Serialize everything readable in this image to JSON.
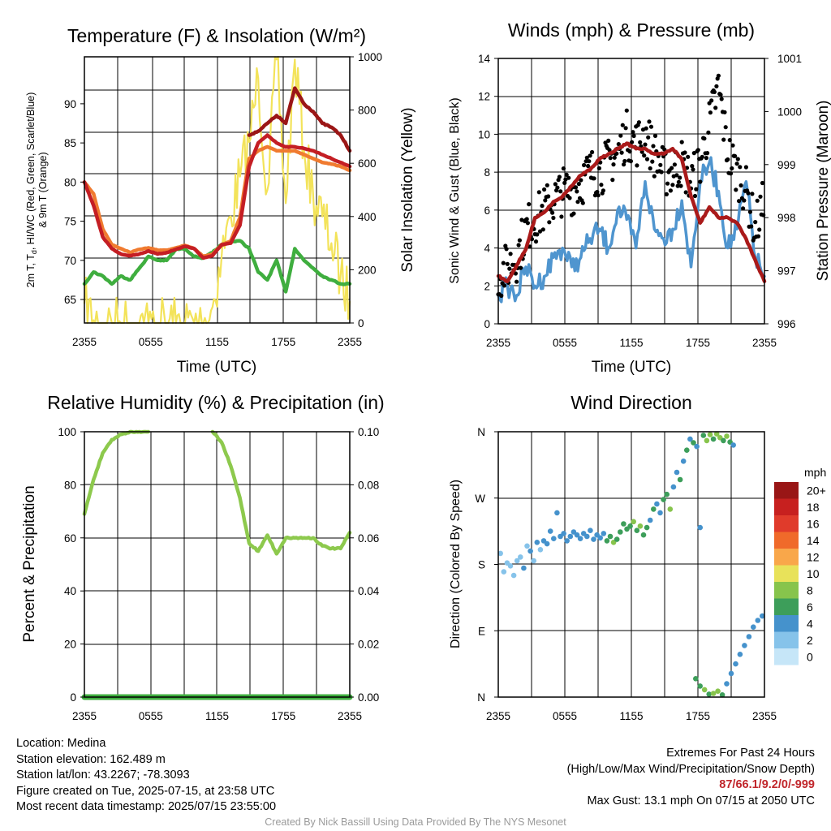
{
  "panels": {
    "temp": {
      "title": "Temperature (F) & Insolation (W/m²)",
      "xlabel": "Time (UTC)",
      "ylabel_left_line1": "2m T, T",
      "ylabel_left_line1_sub": "d",
      "ylabel_left_line1_tail": ", HI/WC (Red, Green, Scarlet/Blue)",
      "ylabel_left_line2": "& 9m T (Orange)",
      "ylabel_right": "Solar Insolation (Yellow)",
      "y_left_ticks": [
        "65",
        "70",
        "75",
        "80",
        "85",
        "90"
      ],
      "y_right_ticks": [
        "0",
        "200",
        "400",
        "600",
        "800",
        "1000"
      ]
    },
    "wind": {
      "title": "Winds (mph) & Pressure (mb)",
      "xlabel": "Time (UTC)",
      "ylabel_left": "Sonic Wind & Gust (Blue, Black)",
      "ylabel_right": "Station Pressure (Maroon)",
      "y_left_ticks": [
        "0",
        "2",
        "4",
        "6",
        "8",
        "10",
        "12",
        "14"
      ],
      "y_right_ticks": [
        "996",
        "997",
        "998",
        "999",
        "1000",
        "1001"
      ]
    },
    "rh": {
      "title": "Relative Humidity (%) & Precipitation (in)",
      "ylabel_left": "Percent & Precipitation",
      "y_left_ticks": [
        "0",
        "20",
        "40",
        "60",
        "80",
        "100"
      ],
      "y_right_ticks": [
        "0.00",
        "0.02",
        "0.04",
        "0.06",
        "0.08",
        "0.10"
      ]
    },
    "dir": {
      "title": "Wind Direction",
      "ylabel_left": "Direction (Colored By Speed)",
      "y_ticks": [
        "N",
        "E",
        "S",
        "W",
        "N"
      ],
      "legend_title": "mph",
      "legend_labels": [
        "0",
        "2",
        "4",
        "6",
        "8",
        "10",
        "12",
        "14",
        "16",
        "18",
        "20+"
      ]
    }
  },
  "x_ticks": [
    "2355",
    "0555",
    "1155",
    "1755",
    "2355"
  ],
  "colors": {
    "temp_red": "#c41e24",
    "temp_orange": "#f07b30",
    "dewpoint_green": "#3fae3f",
    "heat_index_maroon": "#9b1616",
    "insolation_yellow": "#f3e35a",
    "wind_blue": "#4f95cf",
    "gust_black": "#000000",
    "pressure_maroon": "#aa1a1a",
    "rh_green": "#8dc94d",
    "precip_green": "#3fae3f",
    "speed_scale": [
      "#c6e6f8",
      "#86c3ea",
      "#4592cc",
      "#3d9e5a",
      "#87c44c",
      "#e8e25a",
      "#f9a74a",
      "#f06a2a",
      "#e03b2b",
      "#c7201f",
      "#991616"
    ]
  },
  "chart_data": [
    {
      "type": "line",
      "title": "Temperature (F) & Insolation (W/m²)",
      "xlabel": "Time (UTC)",
      "x_ticks": [
        "2355",
        "0555",
        "1155",
        "1755",
        "2355"
      ],
      "ylim": [
        62,
        96
      ],
      "y2lim": [
        0,
        1000
      ],
      "series": [
        {
          "name": "2m T",
          "values": [
            80,
            77,
            73,
            71.5,
            70.8,
            70.6,
            70.8,
            71.2,
            70.8,
            71,
            71.4,
            71.8,
            71.5,
            70.3,
            70.6,
            72,
            72.2,
            74.5,
            82,
            85,
            86,
            85,
            84.5,
            84.5,
            84.3,
            84,
            83.5,
            83,
            82.5,
            82
          ]
        },
        {
          "name": "9m T",
          "values": [
            80,
            78.5,
            74,
            72,
            71.5,
            71,
            71.4,
            71.6,
            71.3,
            71.3,
            71.6,
            71.9,
            71.5,
            70.5,
            70.8,
            72,
            72.5,
            75.5,
            83,
            84,
            84.5,
            84,
            84,
            84,
            83.5,
            83,
            82.5,
            82.3,
            82,
            81.5
          ]
        },
        {
          "name": "Td",
          "values": [
            67,
            68.5,
            68,
            67,
            68,
            67.5,
            69,
            70.5,
            70,
            70,
            71.4,
            71.5,
            70.5,
            70.3,
            71,
            72,
            72.4,
            72.5,
            71.5,
            68.5,
            67.5,
            70,
            66,
            71.5,
            70,
            69,
            68,
            67.5,
            67,
            67
          ]
        },
        {
          "name": "HI/WC",
          "values": [
            null,
            null,
            null,
            null,
            null,
            null,
            null,
            null,
            null,
            null,
            null,
            null,
            null,
            null,
            null,
            null,
            null,
            null,
            86,
            86.5,
            87.5,
            88.5,
            87.5,
            92,
            90,
            89,
            87.5,
            87,
            86,
            84
          ]
        },
        {
          "name": "Solar Insolation",
          "axis": "right",
          "values": [
            75,
            10,
            0,
            0,
            0,
            0,
            0,
            0,
            0,
            0,
            0,
            0,
            0,
            0,
            60,
            250,
            400,
            550,
            680,
            920,
            500,
            990,
            450,
            990,
            650,
            480,
            400,
            300,
            180,
            80
          ]
        }
      ]
    },
    {
      "type": "line",
      "title": "Winds (mph) & Pressure (mb)",
      "xlabel": "Time (UTC)",
      "x_ticks": [
        "2355",
        "0555",
        "1155",
        "1755",
        "2355"
      ],
      "ylim": [
        0,
        14
      ],
      "y2lim": [
        996,
        1001
      ],
      "series": [
        {
          "name": "Sonic Wind",
          "values": [
            1.5,
            2,
            1.5,
            3,
            2,
            2.5,
            3.5,
            4,
            3,
            3.5,
            4.5,
            5,
            4,
            6,
            5.5,
            4,
            7.5,
            5,
            4.5,
            5,
            6.5,
            3,
            7.5,
            8.5,
            7,
            4,
            5,
            7.5,
            3.5,
            2.5
          ]
        },
        {
          "name": "Gust",
          "values": [
            2.5,
            3,
            3.5,
            5,
            5.5,
            6,
            6.5,
            7,
            7,
            7.5,
            8,
            8,
            8.5,
            9,
            10,
            9.5,
            10,
            9,
            8,
            8,
            8.5,
            7.5,
            8.5,
            10.5,
            12.5,
            9,
            8,
            7,
            5,
            6.5
          ]
        },
        {
          "name": "Station Pressure",
          "axis": "right",
          "values": [
            996.9,
            996.8,
            997.1,
            997.4,
            998,
            998.1,
            998.3,
            998.4,
            998.6,
            998.8,
            998.9,
            999.1,
            999.2,
            999.3,
            999.4,
            999.3,
            999.3,
            999.2,
            999.2,
            999.3,
            999.1,
            998.4,
            997.9,
            998.2,
            998,
            998,
            997.9,
            997.6,
            997.2,
            996.8
          ]
        }
      ]
    },
    {
      "type": "line",
      "title": "Relative Humidity (%) & Precipitation (in)",
      "x_ticks": [
        "2355",
        "0555",
        "1155",
        "1755",
        "2355"
      ],
      "ylim": [
        0,
        100
      ],
      "y2lim": [
        0,
        0.1
      ],
      "series": [
        {
          "name": "Relative Humidity",
          "values": [
            69,
            82,
            92,
            97,
            99,
            100,
            100,
            100,
            null,
            null,
            null,
            null,
            null,
            null,
            100,
            96,
            87,
            75,
            58,
            55,
            61,
            54,
            60,
            60,
            60,
            60,
            57,
            56,
            56,
            62
          ]
        },
        {
          "name": "Precipitation",
          "axis": "right",
          "values": [
            0,
            0,
            0,
            0,
            0,
            0,
            0,
            0,
            0,
            0,
            0,
            0,
            0,
            0,
            0,
            0,
            0,
            0,
            0,
            0,
            0,
            0,
            0,
            0,
            0,
            0,
            0,
            0,
            0,
            0
          ]
        }
      ]
    },
    {
      "type": "scatter",
      "title": "Wind Direction",
      "x_ticks": [
        "2355",
        "0555",
        "1155",
        "1755",
        "2355"
      ],
      "y_ticks": [
        "N",
        "E",
        "S",
        "W",
        "N"
      ],
      "ylim": [
        0,
        360
      ],
      "points": [
        {
          "t": 0.2,
          "dir": 195,
          "spd": 1
        },
        {
          "t": 0.5,
          "dir": 170,
          "spd": 1
        },
        {
          "t": 0.8,
          "dir": 182,
          "spd": 2
        },
        {
          "t": 1.1,
          "dir": 178,
          "spd": 1
        },
        {
          "t": 1.4,
          "dir": 165,
          "spd": 2
        },
        {
          "t": 1.7,
          "dir": 185,
          "spd": 2
        },
        {
          "t": 2.0,
          "dir": 190,
          "spd": 1
        },
        {
          "t": 2.3,
          "dir": 175,
          "spd": 3
        },
        {
          "t": 2.6,
          "dir": 205,
          "spd": 2
        },
        {
          "t": 2.9,
          "dir": 198,
          "spd": 3
        },
        {
          "t": 3.2,
          "dir": 185,
          "spd": 2
        },
        {
          "t": 3.5,
          "dir": 210,
          "spd": 3
        },
        {
          "t": 3.8,
          "dir": 200,
          "spd": 2
        },
        {
          "t": 4.1,
          "dir": 212,
          "spd": 3
        },
        {
          "t": 4.4,
          "dir": 208,
          "spd": 4
        },
        {
          "t": 4.7,
          "dir": 225,
          "spd": 3
        },
        {
          "t": 5.0,
          "dir": 215,
          "spd": 4
        },
        {
          "t": 5.3,
          "dir": 250,
          "spd": 3
        },
        {
          "t": 5.6,
          "dir": 218,
          "spd": 4
        },
        {
          "t": 5.9,
          "dir": 222,
          "spd": 4
        },
        {
          "t": 6.2,
          "dir": 212,
          "spd": 3
        },
        {
          "t": 6.5,
          "dir": 218,
          "spd": 4
        },
        {
          "t": 6.8,
          "dir": 224,
          "spd": 4
        },
        {
          "t": 7.1,
          "dir": 220,
          "spd": 4
        },
        {
          "t": 7.4,
          "dir": 215,
          "spd": 4
        },
        {
          "t": 7.7,
          "dir": 222,
          "spd": 4
        },
        {
          "t": 8.0,
          "dir": 218,
          "spd": 4
        },
        {
          "t": 8.3,
          "dir": 226,
          "spd": 4
        },
        {
          "t": 8.6,
          "dir": 214,
          "spd": 4
        },
        {
          "t": 8.9,
          "dir": 220,
          "spd": 4
        },
        {
          "t": 9.2,
          "dir": 216,
          "spd": 4
        },
        {
          "t": 9.5,
          "dir": 222,
          "spd": 4
        },
        {
          "t": 9.8,
          "dir": 212,
          "spd": 5
        },
        {
          "t": 10.1,
          "dir": 218,
          "spd": 6
        },
        {
          "t": 10.4,
          "dir": 210,
          "spd": 7
        },
        {
          "t": 10.7,
          "dir": 214,
          "spd": 6
        },
        {
          "t": 11.0,
          "dir": 224,
          "spd": 5
        },
        {
          "t": 11.3,
          "dir": 235,
          "spd": 6
        },
        {
          "t": 11.6,
          "dir": 228,
          "spd": 5
        },
        {
          "t": 11.9,
          "dir": 232,
          "spd": 6
        },
        {
          "t": 12.2,
          "dir": 238,
          "spd": 7
        },
        {
          "t": 12.5,
          "dir": 226,
          "spd": 6
        },
        {
          "t": 12.8,
          "dir": 232,
          "spd": 7
        },
        {
          "t": 13.1,
          "dir": 220,
          "spd": 6
        },
        {
          "t": 13.4,
          "dir": 230,
          "spd": 5
        },
        {
          "t": 13.7,
          "dir": 240,
          "spd": 4
        },
        {
          "t": 14.0,
          "dir": 255,
          "spd": 5
        },
        {
          "t": 14.3,
          "dir": 262,
          "spd": 4
        },
        {
          "t": 14.6,
          "dir": 250,
          "spd": 4
        },
        {
          "t": 14.9,
          "dir": 268,
          "spd": 5
        },
        {
          "t": 15.2,
          "dir": 275,
          "spd": 6
        },
        {
          "t": 15.5,
          "dir": 255,
          "spd": 7
        },
        {
          "t": 15.8,
          "dir": 285,
          "spd": 4
        },
        {
          "t": 16.1,
          "dir": 305,
          "spd": 4
        },
        {
          "t": 16.4,
          "dir": 295,
          "spd": 5
        },
        {
          "t": 16.7,
          "dir": 320,
          "spd": 4
        },
        {
          "t": 17.0,
          "dir": 335,
          "spd": 5
        },
        {
          "t": 17.3,
          "dir": 350,
          "spd": 4
        },
        {
          "t": 17.6,
          "dir": 345,
          "spd": 6
        },
        {
          "t": 17.9,
          "dir": 340,
          "spd": 4
        },
        {
          "t": 18.2,
          "dir": 230,
          "spd": 4
        },
        {
          "t": 18.5,
          "dir": 355,
          "spd": 6
        },
        {
          "t": 18.8,
          "dir": 348,
          "spd": 7
        },
        {
          "t": 19.1,
          "dir": 356,
          "spd": 8
        },
        {
          "t": 19.4,
          "dir": 350,
          "spd": 6
        },
        {
          "t": 19.7,
          "dir": 357,
          "spd": 7
        },
        {
          "t": 20.0,
          "dir": 352,
          "spd": 8
        },
        {
          "t": 20.3,
          "dir": 348,
          "spd": 6
        },
        {
          "t": 20.6,
          "dir": 354,
          "spd": 7
        },
        {
          "t": 20.9,
          "dir": 346,
          "spd": 6
        },
        {
          "t": 21.2,
          "dir": 342,
          "spd": 4
        },
        {
          "t": 17.8,
          "dir": 25,
          "spd": 6
        },
        {
          "t": 18.2,
          "dir": 15,
          "spd": 6
        },
        {
          "t": 18.6,
          "dir": 10,
          "spd": 7
        },
        {
          "t": 19.0,
          "dir": 4,
          "spd": 5
        },
        {
          "t": 19.4,
          "dir": 5,
          "spd": 8
        },
        {
          "t": 19.8,
          "dir": 8,
          "spd": 7
        },
        {
          "t": 20.2,
          "dir": 3,
          "spd": 5
        },
        {
          "t": 20.6,
          "dir": 18,
          "spd": 4
        },
        {
          "t": 21.0,
          "dir": 32,
          "spd": 4
        },
        {
          "t": 21.4,
          "dir": 45,
          "spd": 3
        },
        {
          "t": 21.8,
          "dir": 58,
          "spd": 4
        },
        {
          "t": 22.2,
          "dir": 70,
          "spd": 3
        },
        {
          "t": 22.6,
          "dir": 82,
          "spd": 4
        },
        {
          "t": 23.0,
          "dir": 95,
          "spd": 4
        },
        {
          "t": 23.4,
          "dir": 104,
          "spd": 3
        },
        {
          "t": 23.8,
          "dir": 110,
          "spd": 4
        }
      ]
    }
  ],
  "footer": {
    "location": "Location: Medina",
    "elevation": "Station elevation: 162.489 m",
    "latlon": "Station lat/lon: 43.2267; -78.3093",
    "created": "Figure created on Tue, 2025-07-15, at 23:58 UTC",
    "timestamp": "Most recent data timestamp: 2025/07/15 23:55:00",
    "extremes_title": "Extremes For Past 24 Hours",
    "extremes_legend": "(High/Low/Max Wind/Precipitation/Snow Depth)",
    "extremes_values": "87/66.1/9.2/0/-999",
    "max_gust": "Max Gust: 13.1 mph On 07/15 at 2050 UTC",
    "credit": "Created By Nick Bassill Using Data Provided By The NYS Mesonet"
  }
}
